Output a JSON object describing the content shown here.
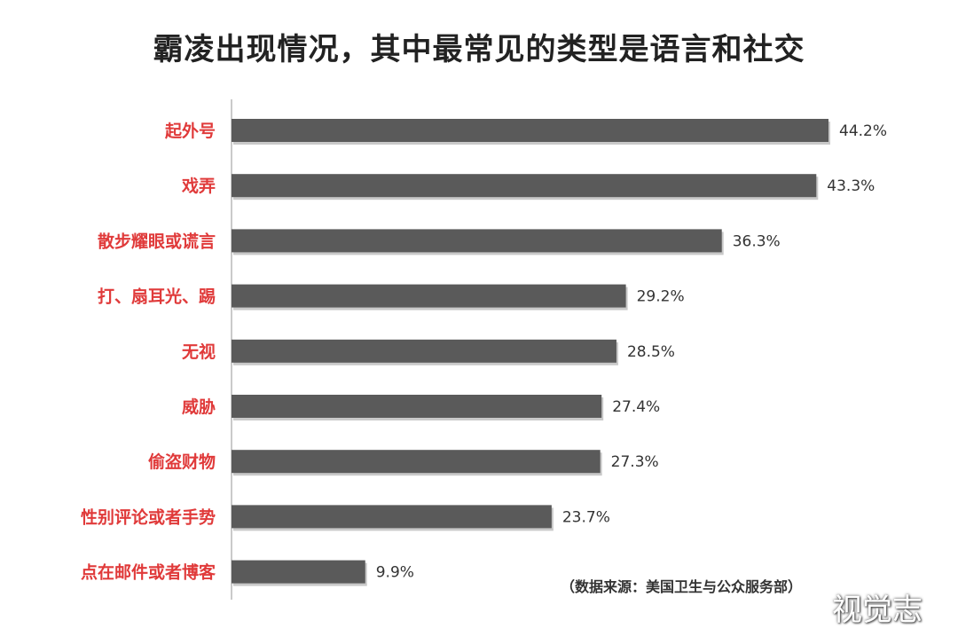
{
  "colors": {
    "bar": "#5a5a5a",
    "category_text": "#e03a3a",
    "title": "#222222"
  },
  "chart_data": {
    "type": "bar",
    "orientation": "horizontal",
    "title": "霸凌出现情况，其中最常见的类型是语言和社交",
    "categories": [
      "起外号",
      "戏弄",
      "散步耀眼或谎言",
      "打、扇耳光、踢",
      "无视",
      "威胁",
      "偷盗财物",
      "性别评论或者手势",
      "点在邮件或者博客"
    ],
    "values": [
      44.2,
      43.3,
      36.3,
      29.2,
      28.5,
      27.4,
      27.3,
      23.7,
      9.9
    ],
    "value_labels": [
      "44.2%",
      "43.3%",
      "36.3%",
      "29.2%",
      "28.5%",
      "27.4%",
      "27.3%",
      "23.7%",
      "9.9%"
    ],
    "xlim": [
      0,
      44.2
    ],
    "grid": false,
    "legend": "none"
  },
  "source_note": "（数据来源：美国卫生与公众服务部）",
  "watermark": "视觉志"
}
